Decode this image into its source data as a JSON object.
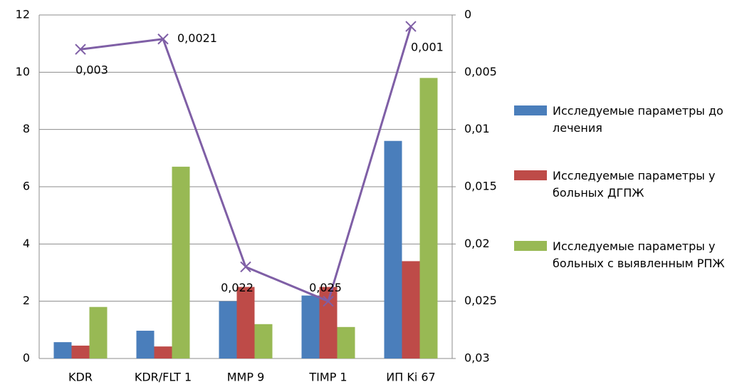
{
  "chart_data": {
    "type": "bar",
    "categories": [
      "KDR",
      "KDR/FLT 1",
      "MMP 9",
      "TIMP 1",
      "ИП Ki 67"
    ],
    "series": [
      {
        "name": "Исследуемые параметры до лечения",
        "color": "#4a7ebb",
        "values": [
          0.57,
          0.97,
          2.0,
          2.2,
          7.6
        ]
      },
      {
        "name": "Исследуемые параметры у больных  ДГПЖ",
        "color": "#be4b48",
        "values": [
          0.45,
          0.42,
          2.5,
          2.5,
          3.4
        ]
      },
      {
        "name": "Исследуемые параметры у больных с выявленным РПЖ",
        "color": "#98b954",
        "values": [
          1.8,
          6.7,
          1.2,
          1.1,
          9.8
        ]
      },
      {
        "type": "line",
        "axis": "y2",
        "color": "#7f5fa6",
        "values": [
          0.003,
          0.0021,
          0.022,
          0.025,
          0.001
        ],
        "value_labels": [
          "0,003",
          "0,0021",
          "0,022",
          "0,025",
          "0,001"
        ]
      }
    ],
    "ylim": [
      0,
      12
    ],
    "yticks": [
      0,
      2,
      4,
      6,
      8,
      10,
      12
    ],
    "y2lim": [
      0,
      0.03
    ],
    "y2_inverted": true,
    "y2ticks": [
      0,
      {
        "value": 0.005,
        "label": "0,005"
      },
      {
        "value": 0.01,
        "label": "0,01"
      },
      {
        "value": 0.015,
        "label": "0,015"
      },
      {
        "value": 0.02,
        "label": "0,02"
      },
      {
        "value": 0.025,
        "label": "0,025"
      },
      {
        "value": 0.03,
        "label": "0,03"
      }
    ],
    "grid": true,
    "legend": "right"
  }
}
